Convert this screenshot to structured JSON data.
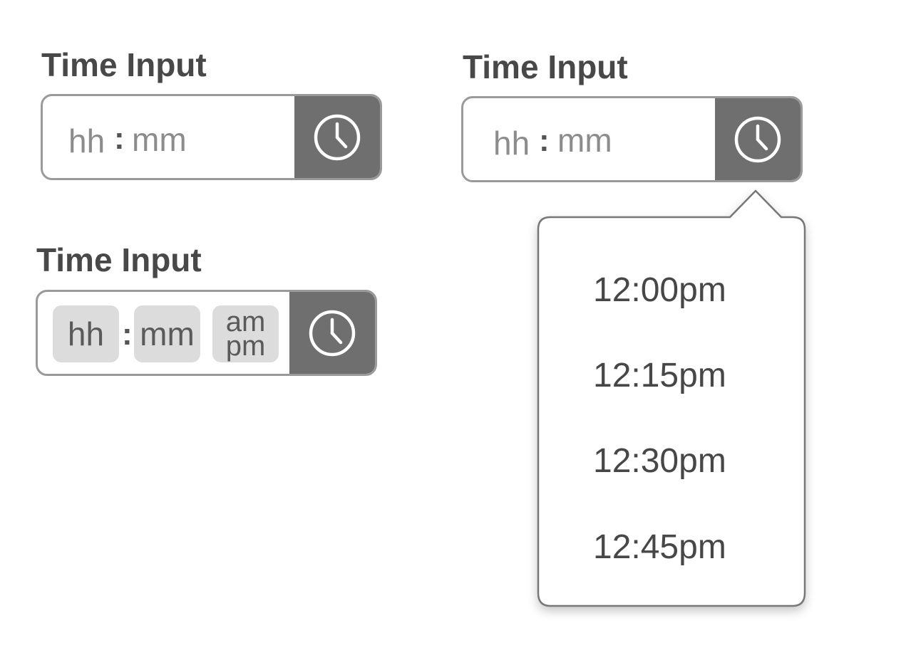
{
  "widgets": [
    {
      "label": "Time Input",
      "hour_placeholder": "hh",
      "separator": ":",
      "minute_placeholder": "mm"
    },
    {
      "label": "Time Input",
      "hour_placeholder": "hh",
      "separator": ":",
      "minute_placeholder": "mm"
    },
    {
      "label": "Time Input",
      "hour_segment": "hh",
      "separator": ":",
      "minute_segment": "mm",
      "ampm_top": "am",
      "ampm_bottom": "pm"
    }
  ],
  "dropdown": {
    "options": [
      "12:00pm",
      "12:15pm",
      "12:30pm",
      "12:45pm"
    ]
  },
  "icons": {
    "clock_button": "clock-icon"
  },
  "colors": {
    "button_fill": "#6f6f6f",
    "field_border": "#9a9a9a",
    "segment_fill": "#dcdcdc",
    "label_text": "#484848",
    "placeholder_text": "#8c8c8c"
  }
}
